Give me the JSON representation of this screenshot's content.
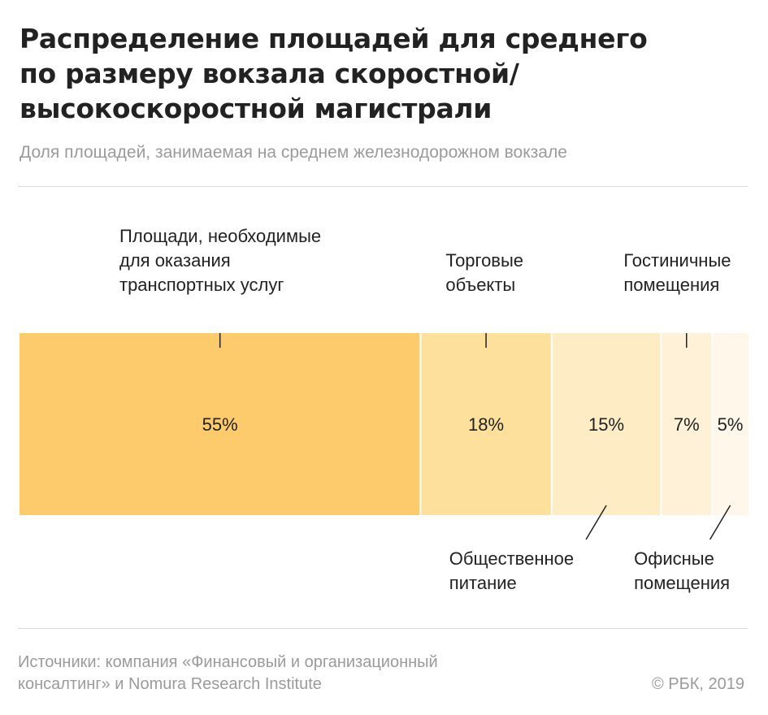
{
  "title_lines": [
    "Распределение площадей для среднего",
    "по размеру вокзала скоростной/",
    "высокоскоростной магистрали"
  ],
  "subtitle": "Доля площадей, занимаемая на среднем железнодорожном вокзале",
  "footer": {
    "source_lines": [
      "Источники: компания «Финансовый и организационный",
      "консалтинг» и Nomura Research Institute"
    ],
    "copyright": "© РБК, 2019"
  },
  "colors": {
    "segments": [
      "#fdcb6b",
      "#fde09b",
      "#feecc5",
      "#fff1d7",
      "#fff8ea"
    ],
    "text": "#222222",
    "leader": "#222222",
    "separator": "#ffffff"
  },
  "chart_data": {
    "type": "bar",
    "orientation": "horizontal-stacked",
    "unit": "%",
    "categories": [
      "Площади, необходимые для оказания транспортных услуг",
      "Торговые объекты",
      "Общественное питание",
      "Гостиничные помещения",
      "Офисные помещения"
    ],
    "values": [
      55,
      18,
      15,
      7,
      5
    ],
    "value_labels": [
      "55%",
      "18%",
      "15%",
      "7%",
      "5%"
    ],
    "annotations": [
      {
        "lines": [
          "Площади, необходимые",
          "для оказания",
          "транспортных услуг"
        ],
        "position": "top"
      },
      {
        "lines": [
          "Торговые",
          "объекты"
        ],
        "position": "top"
      },
      {
        "lines": [
          "Общественное",
          "питание"
        ],
        "position": "bottom"
      },
      {
        "lines": [
          "Гостиничные",
          "помещения"
        ],
        "position": "top"
      },
      {
        "lines": [
          "Офисные",
          "помещения"
        ],
        "position": "bottom"
      }
    ]
  }
}
